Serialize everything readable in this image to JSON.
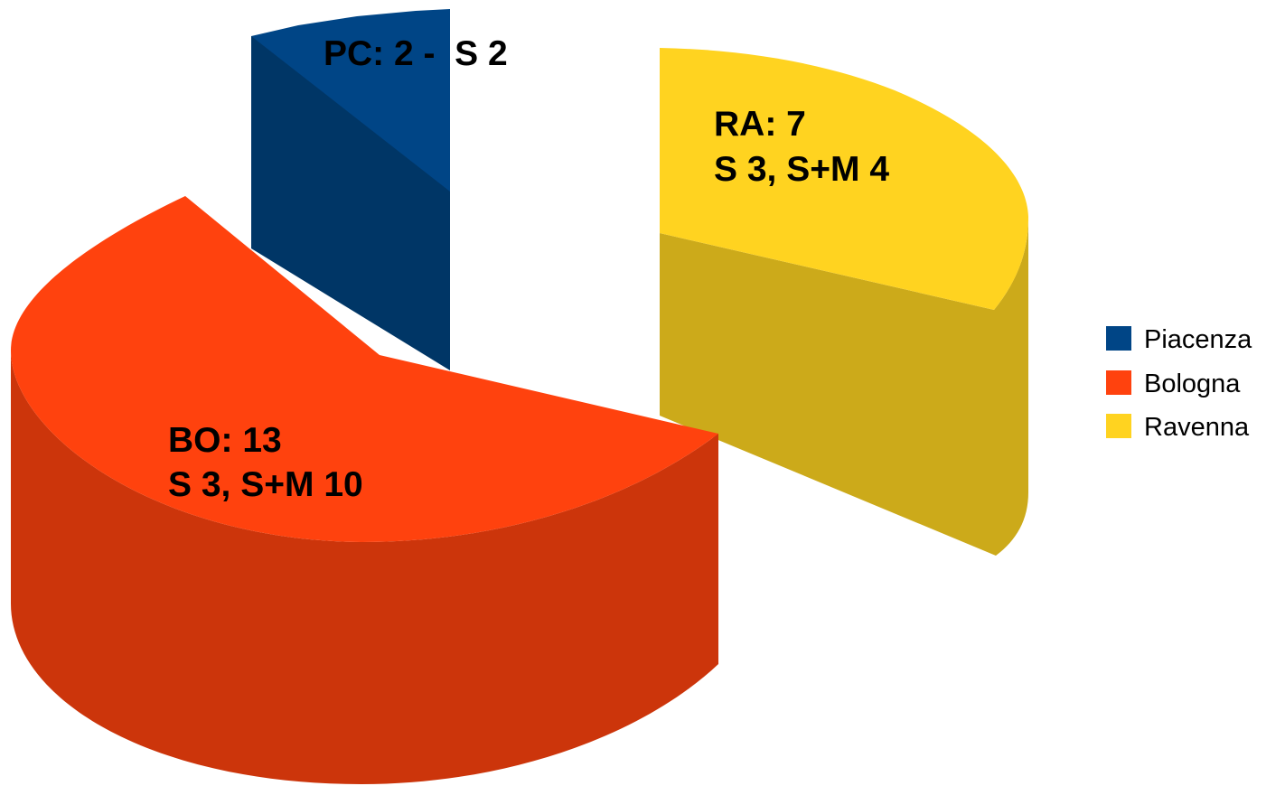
{
  "chart_data": {
    "type": "pie",
    "style": "3d-exploded",
    "categories": [
      "Piacenza",
      "Bologna",
      "Ravenna"
    ],
    "values": [
      2,
      13,
      7
    ],
    "colors": {
      "Piacenza": {
        "top": "#004586",
        "side": "#003666"
      },
      "Bologna": {
        "top": "#ff420e",
        "side": "#cc350b"
      },
      "Ravenna": {
        "top": "#ffd320",
        "side": "#ccaa1a"
      }
    },
    "data_labels": [
      {
        "category": "Piacenza",
        "lines": [
          "PC: 2 -  S 2"
        ]
      },
      {
        "category": "Bologna",
        "lines": [
          "BO: 13",
          "S 3, S+M 10"
        ]
      },
      {
        "category": "Ravenna",
        "lines": [
          "RA: 7",
          "S 3, S+M 4"
        ]
      }
    ],
    "legend": {
      "position": "right",
      "entries": [
        "Piacenza",
        "Bologna",
        "Ravenna"
      ]
    }
  }
}
